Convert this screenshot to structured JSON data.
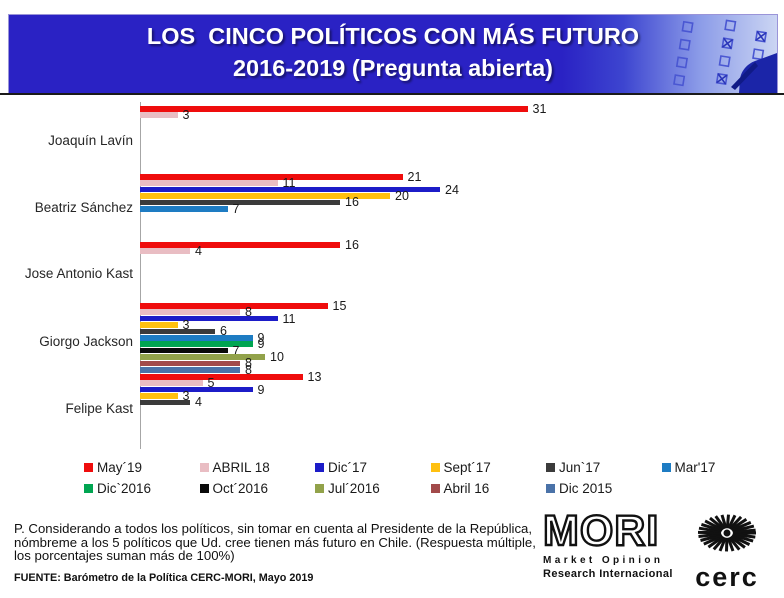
{
  "header": {
    "title_line1": "LOS  CINCO POLÍTICOS CON MÁS FUTURO",
    "title_line2": "2016-2019 (Pregunta abierta)",
    "header_bg": "#2A22C4"
  },
  "chart_data": {
    "type": "bar",
    "orientation": "horizontal",
    "title": "LOS CINCO POLÍTICOS CON MÁS FUTURO 2016-2019 (Pregunta abierta)",
    "xlabel": "",
    "ylabel": "",
    "xlim": [
      0,
      31
    ],
    "grid": false,
    "value_labels": true,
    "legend_position": "bottom",
    "categories": [
      "Joaquín Lavín",
      "Beatriz Sánchez",
      "Jose Antonio Kast",
      "Giorgo Jackson",
      "Felipe Kast"
    ],
    "series": [
      {
        "name": "May´19",
        "color": "#EF0D0D",
        "values": [
          31,
          21,
          16,
          15,
          13
        ]
      },
      {
        "name": "ABRIL 18",
        "color": "#E9BDC3",
        "values": [
          3,
          11,
          4,
          8,
          5
        ]
      },
      {
        "name": "Dic´17",
        "color": "#1C1CC8",
        "values": [
          null,
          24,
          null,
          11,
          9
        ]
      },
      {
        "name": "Sept´17",
        "color": "#FFC010",
        "values": [
          null,
          20,
          null,
          3,
          3
        ]
      },
      {
        "name": "Jun`17",
        "color": "#3B3B3B",
        "values": [
          null,
          16,
          null,
          6,
          4
        ]
      },
      {
        "name": "Mar'17",
        "color": "#1E7CC3",
        "values": [
          null,
          7,
          null,
          9,
          null
        ]
      },
      {
        "name": "Dic`2016",
        "color": "#00A551",
        "values": [
          null,
          null,
          null,
          9,
          null
        ]
      },
      {
        "name": "Oct´2016",
        "color": "#0A0A0A",
        "values": [
          null,
          null,
          null,
          7,
          null
        ]
      },
      {
        "name": "Jul´2016",
        "color": "#92A24A",
        "values": [
          null,
          null,
          null,
          10,
          null
        ]
      },
      {
        "name": "Abril 16",
        "color": "#A24A4A",
        "values": [
          null,
          null,
          null,
          8,
          null
        ]
      },
      {
        "name": "Dic 2015",
        "color": "#4A72A8",
        "values": [
          null,
          null,
          null,
          8,
          null
        ]
      }
    ]
  },
  "footnote": {
    "question_line1": "P. Considerando a todos los políticos, sin tomar en cuenta al Presidente de la República,",
    "question_line2": "nómbreme a los 5 políticos que Ud. cree tienen más futuro en Chile. (Respuesta múltiple,",
    "question_line3": "los porcentajes suman más de 100%)",
    "source": "FUENTE: Barómetro de la Política CERC-MORI, Mayo 2019"
  },
  "logos": {
    "mori": {
      "name": "MORI",
      "sub1": "Market Opinion",
      "sub2": "Research Internacional"
    },
    "cerc": {
      "name": "cerc"
    }
  }
}
